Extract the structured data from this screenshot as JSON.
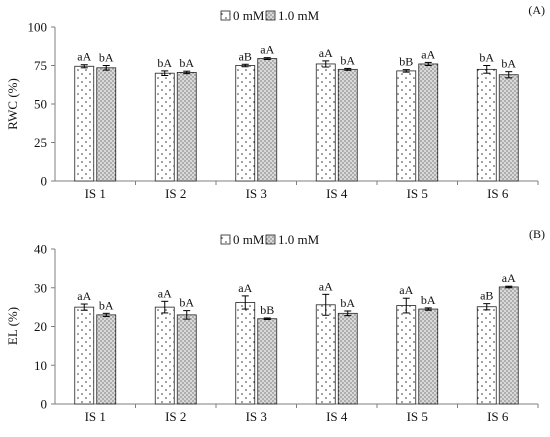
{
  "colors": {
    "axis": "#7f7f7f",
    "bar_stroke": "#222222",
    "bar0_fill": "#ffffff",
    "bar1_fill": "#d9d9d9",
    "dots": "#333333",
    "text": "#111111"
  },
  "chart_data": [
    {
      "type": "bar",
      "panel_label": "(A)",
      "ylabel": "RWC (%)",
      "ylim": [
        0,
        100
      ],
      "yticks": [
        0,
        25,
        50,
        75,
        100
      ],
      "legend_placement": "top-center",
      "categories": [
        "IS 1",
        "IS 2",
        "IS 3",
        "IS 4",
        "IS 5",
        "IS 6"
      ],
      "series": [
        {
          "name": "0 mM",
          "values": [
            74.5,
            70,
            75,
            76,
            71.5,
            72.5
          ],
          "errors": [
            1,
            1.5,
            0.8,
            2,
            0.8,
            2.5
          ],
          "labels": [
            "aA",
            "bA",
            "aB",
            "aA",
            "bB",
            "bA"
          ]
        },
        {
          "name": "1.0 mM",
          "values": [
            73.5,
            70.5,
            79.5,
            72.5,
            76,
            69
          ],
          "errors": [
            1.5,
            0.8,
            0.6,
            0.6,
            1,
            2
          ],
          "labels": [
            "bA",
            "bA",
            "aA",
            "bA",
            "aA",
            "bA"
          ]
        }
      ]
    },
    {
      "type": "bar",
      "panel_label": "(B)",
      "ylabel": "EL (%)",
      "ylim": [
        0,
        40
      ],
      "yticks": [
        0,
        10,
        20,
        30,
        40
      ],
      "legend_placement": "top-center",
      "categories": [
        "IS 1",
        "IS 2",
        "IS 3",
        "IS 4",
        "IS 5",
        "IS 6"
      ],
      "series": [
        {
          "name": "0 mM",
          "values": [
            25,
            25,
            26.2,
            25.6,
            25.4,
            25.1
          ],
          "errors": [
            0.8,
            1.5,
            1.7,
            2.7,
            1.9,
            0.8
          ],
          "labels": [
            "aA",
            "aA",
            "aA",
            "aA",
            "aA",
            "aB"
          ]
        },
        {
          "name": "1.0 mM",
          "values": [
            23,
            23,
            22,
            23.4,
            24.5,
            30.2
          ],
          "errors": [
            0.4,
            1.1,
            0.2,
            0.6,
            0.3,
            0.2
          ],
          "labels": [
            "bA",
            "bA",
            "bB",
            "bA",
            "bA",
            "aA"
          ]
        }
      ]
    }
  ]
}
